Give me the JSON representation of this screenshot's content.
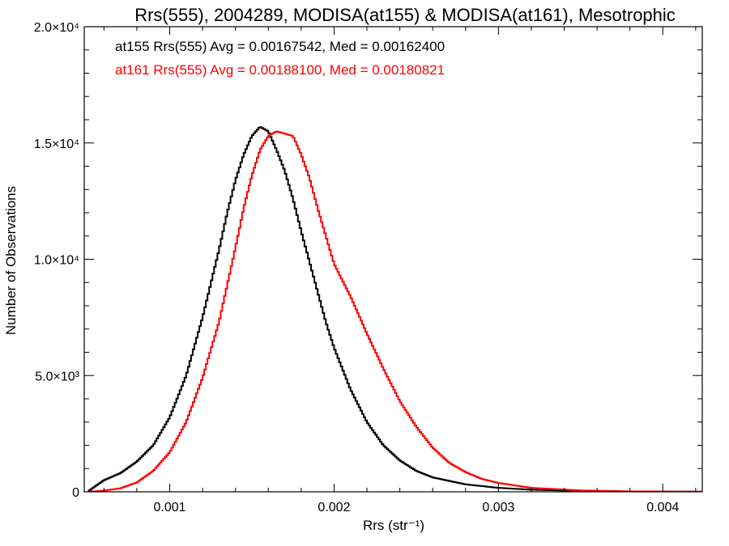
{
  "chart_data": {
    "type": "line",
    "title": "Rrs(555), 2004289, MODISA(at155) & MODISA(at161), Mesotrophic",
    "xlabel": "Rrs (str⁻¹)",
    "ylabel": "Number of Observations",
    "xlim": [
      0.00048,
      0.00424
    ],
    "ylim": [
      0,
      20000
    ],
    "x_ticks": [
      {
        "value": 0.001,
        "label": "0.001"
      },
      {
        "value": 0.002,
        "label": "0.002"
      },
      {
        "value": 0.003,
        "label": "0.003"
      },
      {
        "value": 0.004,
        "label": "0.004"
      }
    ],
    "y_ticks": [
      {
        "value": 0,
        "label": "0"
      },
      {
        "value": 5000,
        "label": "5.0×10³"
      },
      {
        "value": 10000,
        "label": "1.0×10⁴"
      },
      {
        "value": 15000,
        "label": "1.5×10⁴"
      },
      {
        "value": 20000,
        "label": "2.0×10⁴"
      }
    ],
    "grid": false,
    "series": [
      {
        "stat_text": "at155 Rrs(555) Avg = 0.00167542, Med = 0.00162400",
        "color": "#000000",
        "x": [
          0.0005,
          0.0006,
          0.0007,
          0.0008,
          0.0009,
          0.001,
          0.0011,
          0.0012,
          0.0013,
          0.00135,
          0.0014,
          0.00145,
          0.0015,
          0.00155,
          0.0016,
          0.00165,
          0.0017,
          0.00175,
          0.0018,
          0.00185,
          0.0019,
          0.00195,
          0.002,
          0.0021,
          0.0022,
          0.0023,
          0.0024,
          0.0025,
          0.0026,
          0.0028,
          0.003,
          0.0032,
          0.0035,
          0.0038,
          0.00424
        ],
        "y": [
          0,
          500,
          800,
          1300,
          2000,
          3200,
          5000,
          7500,
          10400,
          12000,
          13400,
          14500,
          15300,
          15700,
          15500,
          14700,
          13800,
          12600,
          11200,
          9900,
          8600,
          7300,
          6200,
          4400,
          3000,
          2000,
          1350,
          900,
          620,
          320,
          170,
          90,
          40,
          15,
          5
        ]
      },
      {
        "stat_text": "at161 Rrs(555) Avg = 0.00188100, Med = 0.00180821",
        "color": "#ff0000",
        "x": [
          0.0005,
          0.0006,
          0.0007,
          0.0008,
          0.0009,
          0.001,
          0.0011,
          0.0012,
          0.0013,
          0.0014,
          0.00145,
          0.0015,
          0.00155,
          0.0016,
          0.00165,
          0.0017,
          0.00175,
          0.0018,
          0.00185,
          0.0019,
          0.00195,
          0.002,
          0.0021,
          0.0022,
          0.0023,
          0.0024,
          0.0025,
          0.0026,
          0.0027,
          0.0028,
          0.0029,
          0.003,
          0.0032,
          0.0035,
          0.0038,
          0.00424
        ],
        "y": [
          0,
          50,
          150,
          400,
          900,
          1700,
          3000,
          4900,
          7300,
          10500,
          12200,
          13600,
          14700,
          15300,
          15500,
          15400,
          15300,
          14500,
          13500,
          12200,
          11000,
          9800,
          8400,
          6800,
          5300,
          3900,
          2800,
          1900,
          1250,
          850,
          550,
          380,
          170,
          60,
          20,
          5
        ]
      }
    ]
  }
}
